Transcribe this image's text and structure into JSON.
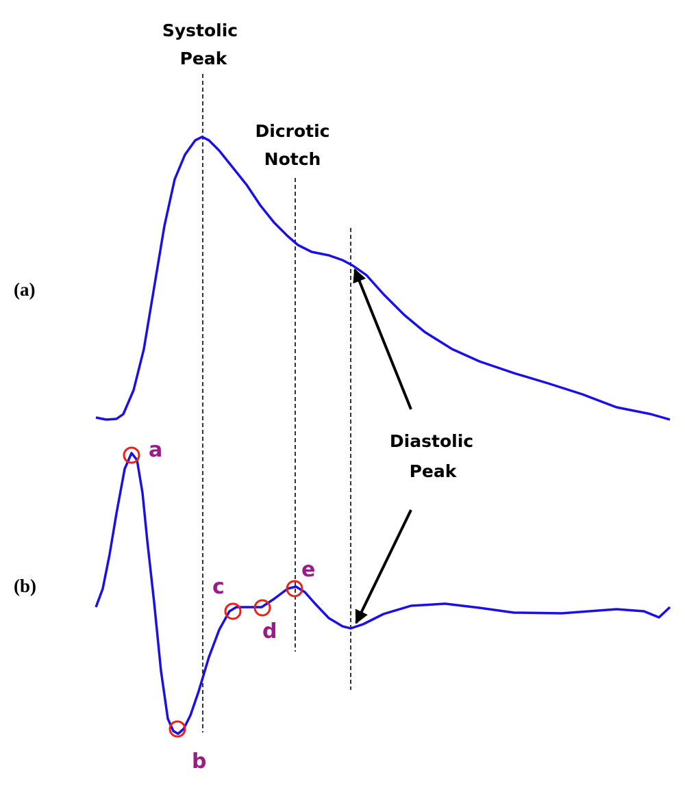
{
  "labels": {
    "systolic_peak": [
      "Systolic",
      "Peak"
    ],
    "dicrotic_notch": [
      "Dicrotic",
      "Notch"
    ],
    "diastolic_peak": [
      "Diastolic",
      "Peak"
    ]
  },
  "panels": {
    "a": "(a)",
    "b": "(b)"
  },
  "points": {
    "a": "a",
    "b": "b",
    "c": "c",
    "d": "d",
    "e": "e"
  }
}
